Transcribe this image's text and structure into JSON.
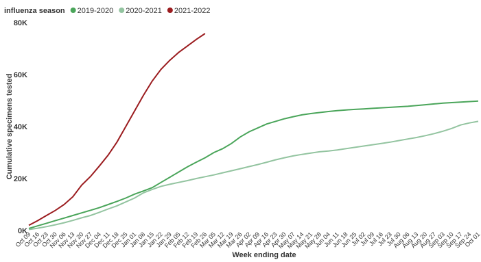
{
  "chart_data": {
    "type": "line",
    "legend_title": "influenza season",
    "x_label": "Week ending date",
    "y_label": "Cumulative specimens tested",
    "categories": [
      "Oct 09",
      "Oct 16",
      "Oct 23",
      "Oct 30",
      "Nov 06",
      "Nov 13",
      "Nov 20",
      "Nov 27",
      "Dec 04",
      "Dec 11",
      "Dec 18",
      "Dec 25",
      "Jan 01",
      "Jan 08",
      "Jan 15",
      "Jan 22",
      "Jan 29",
      "Feb 05",
      "Feb 12",
      "Feb 19",
      "Feb 26",
      "Mar 05",
      "Mar 12",
      "Mar 19",
      "Mar 26",
      "Apr 02",
      "Apr 09",
      "Apr 16",
      "Apr 23",
      "Apr 30",
      "May 07",
      "May 14",
      "May 21",
      "May 28",
      "Jun 04",
      "Jun 11",
      "Jun 18",
      "Jun 25",
      "Jul 02",
      "Jul 09",
      "Jul 16",
      "Jul 23",
      "Jul 30",
      "Aug 06",
      "Aug 13",
      "Aug 20",
      "Aug 27",
      "Sep 03",
      "Sep 10",
      "Sep 17",
      "Sep 24",
      "Oct 01"
    ],
    "series": [
      {
        "name": "2019-2020",
        "color": "#4aa55a",
        "values": [
          800,
          1800,
          2800,
          3800,
          4800,
          5800,
          6800,
          7800,
          8800,
          10000,
          11200,
          12500,
          14000,
          15200,
          16500,
          18500,
          20500,
          22500,
          24500,
          26300,
          28000,
          30000,
          31500,
          33500,
          36000,
          38000,
          39500,
          41000,
          42000,
          43000,
          43800,
          44500,
          45000,
          45400,
          45800,
          46100,
          46400,
          46600,
          46800,
          47000,
          47200,
          47400,
          47600,
          47800,
          48100,
          48400,
          48700,
          49000,
          49200,
          49400,
          49600,
          49800
        ]
      },
      {
        "name": "2020-2021",
        "color": "#93c4a0",
        "values": [
          400,
          900,
          1500,
          2200,
          3000,
          3900,
          4900,
          5800,
          7000,
          8300,
          9500,
          11000,
          12500,
          14500,
          15800,
          17000,
          17800,
          18500,
          19200,
          20000,
          20700,
          21400,
          22200,
          23000,
          23800,
          24600,
          25400,
          26300,
          27200,
          28000,
          28700,
          29300,
          29800,
          30300,
          30600,
          31000,
          31500,
          32000,
          32500,
          33000,
          33500,
          34000,
          34600,
          35200,
          35800,
          36500,
          37300,
          38200,
          39300,
          40600,
          41400,
          42000
        ]
      },
      {
        "name": "2021-2022",
        "color": "#9b1c1f",
        "values": [
          2000,
          3800,
          5800,
          7700,
          10000,
          13000,
          17500,
          20800,
          24800,
          29000,
          34000,
          40000,
          46000,
          52000,
          57500,
          62000,
          65500,
          68500,
          71000,
          73500,
          75800,
          null,
          null,
          null,
          null,
          null,
          null,
          null,
          null,
          null,
          null,
          null,
          null,
          null,
          null,
          null,
          null,
          null,
          null,
          null,
          null,
          null,
          null,
          null,
          null,
          null,
          null,
          null,
          null,
          null,
          null,
          null
        ]
      }
    ],
    "ylim": [
      0,
      80000
    ],
    "yticks": [
      {
        "value": 0,
        "label": "0K"
      },
      {
        "value": 20000,
        "label": "20K"
      },
      {
        "value": 40000,
        "label": "40K"
      },
      {
        "value": 60000,
        "label": "60K"
      },
      {
        "value": 80000,
        "label": "80K"
      }
    ],
    "grid": false
  }
}
